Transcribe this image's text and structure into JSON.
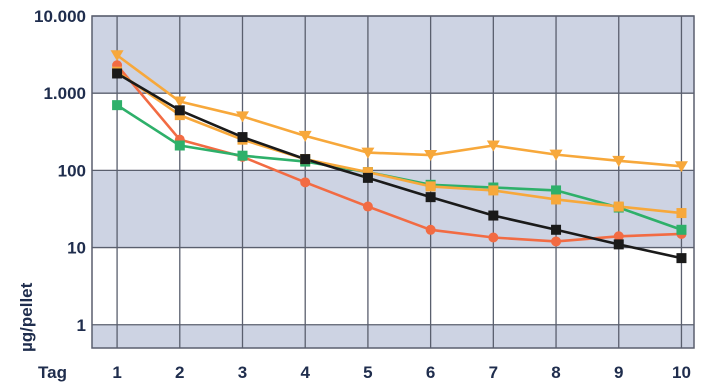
{
  "chart_data": {
    "type": "line",
    "xlabel": "Tag",
    "ylabel": "µg/pellet",
    "y_scale": "log",
    "ylim": [
      0.5,
      10000
    ],
    "xlim": [
      0.6,
      10.2
    ],
    "x": [
      1,
      2,
      3,
      4,
      5,
      6,
      7,
      8,
      9,
      10
    ],
    "x_tick_labels": [
      "1",
      "2",
      "3",
      "4",
      "5",
      "6",
      "7",
      "8",
      "9",
      "10"
    ],
    "y_ticks": [
      1,
      10,
      100,
      1000,
      10000
    ],
    "y_tick_labels": [
      "1",
      "10",
      "100",
      "1.000",
      "10.000"
    ],
    "grid": true,
    "band_color": "#cdd3e3",
    "grid_color": "#5a5f6e",
    "series": [
      {
        "color": "#f7a83b",
        "marker": "triangle-down",
        "values": [
          3100,
          780,
          500,
          280,
          170,
          158,
          210,
          160,
          133,
          113
        ]
      },
      {
        "color": "#f26b43",
        "marker": "circle",
        "values": [
          2300,
          250,
          150,
          70,
          34,
          17,
          13.5,
          12,
          14,
          15
        ]
      },
      {
        "color": "#2eb06a",
        "marker": "square",
        "values": [
          700,
          210,
          155,
          130,
          95,
          65,
          60,
          55,
          33,
          17
        ]
      },
      {
        "color": "#f7a83b",
        "marker": "square",
        "values": [
          1900,
          520,
          250,
          140,
          95,
          62,
          55,
          42,
          34,
          28
        ]
      },
      {
        "color": "#1a1a1a",
        "marker": "square",
        "values": [
          1800,
          600,
          270,
          140,
          80,
          45,
          26,
          17,
          11,
          7.3
        ]
      }
    ]
  }
}
